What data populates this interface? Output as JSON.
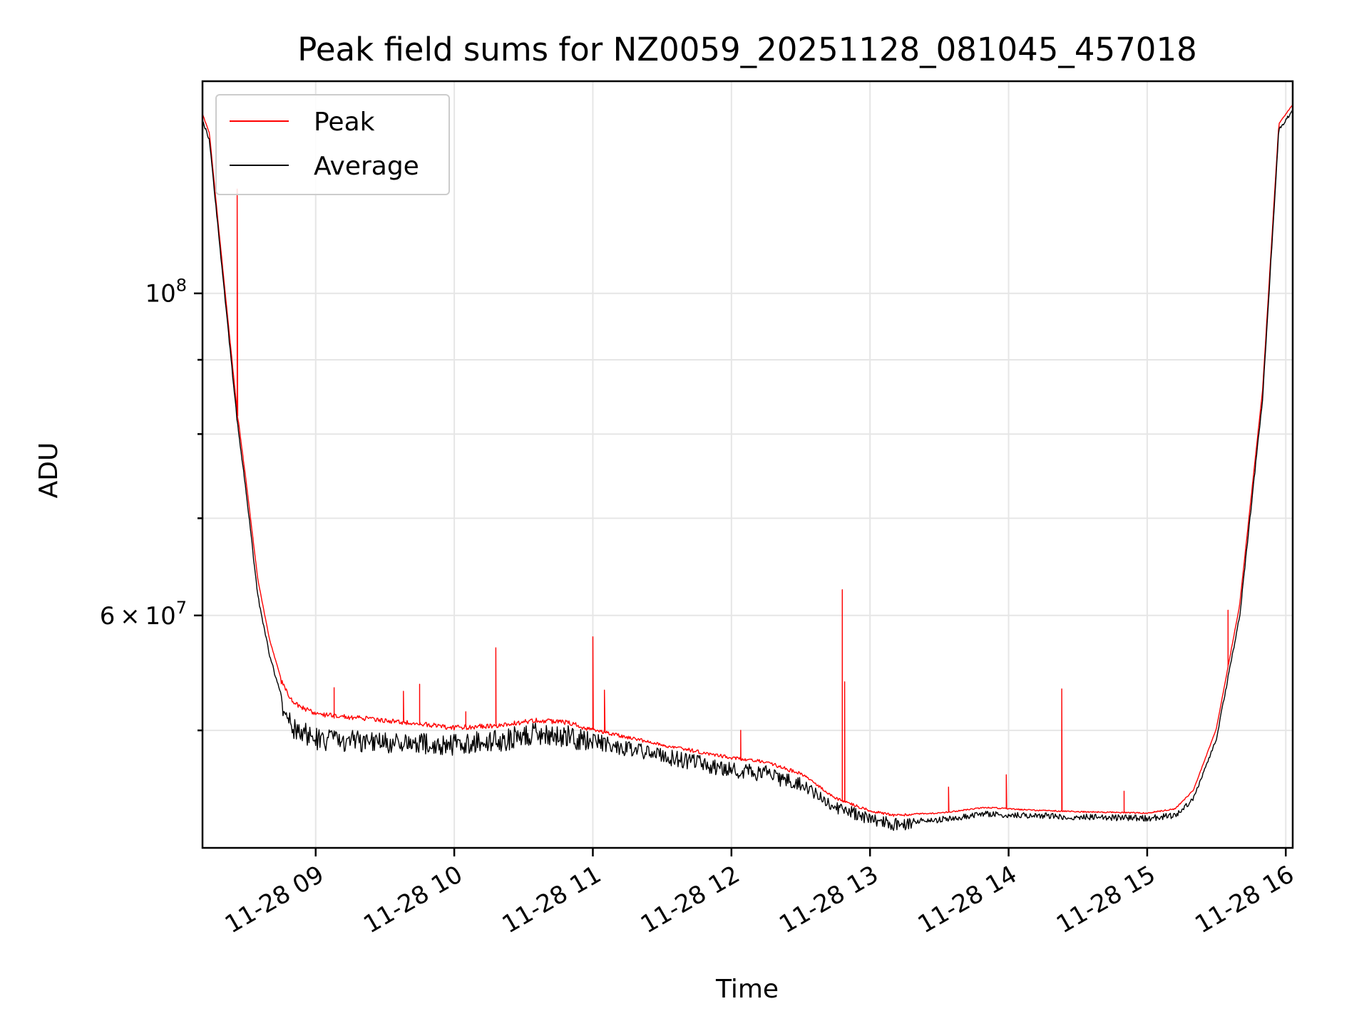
{
  "chart_data": {
    "type": "line",
    "title": "Peak field sums for NZ0059_20251128_081045_457018",
    "xlabel": "Time",
    "ylabel": "ADU",
    "yscale": "log",
    "xlim": [
      "2025-11-28 08:11",
      "2025-11-28 16:03"
    ],
    "ylim": [
      41500000,
      140000000
    ],
    "x_ticks": [
      {
        "value": "2025-11-28 09:00",
        "label": "11-28 09"
      },
      {
        "value": "2025-11-28 10:00",
        "label": "11-28 10"
      },
      {
        "value": "2025-11-28 11:00",
        "label": "11-28 11"
      },
      {
        "value": "2025-11-28 12:00",
        "label": "11-28 12"
      },
      {
        "value": "2025-11-28 13:00",
        "label": "11-28 13"
      },
      {
        "value": "2025-11-28 14:00",
        "label": "11-28 14"
      },
      {
        "value": "2025-11-28 15:00",
        "label": "11-28 15"
      },
      {
        "value": "2025-11-28 16:00",
        "label": "11-28 16"
      }
    ],
    "y_ticks": [
      {
        "value": 100000000,
        "base": "10",
        "exp": "8",
        "label": "10^8"
      },
      {
        "value": 60000000,
        "mant": "6",
        "base": "10",
        "exp": "7",
        "label": "6 × 10^7"
      }
    ],
    "y_minor_ticks": [
      50000000,
      70000000,
      80000000,
      90000000
    ],
    "grid": true,
    "legend": {
      "position": "top-left",
      "entries": [
        "Peak",
        "Average"
      ]
    },
    "series": [
      {
        "name": "Average",
        "color": "#000000",
        "points": [
          [
            "2025-11-28 08:11",
            132000000
          ],
          [
            "2025-11-28 08:14",
            128000000
          ],
          [
            "2025-11-28 08:18",
            110000000
          ],
          [
            "2025-11-28 08:22",
            95000000
          ],
          [
            "2025-11-28 08:26",
            82000000
          ],
          [
            "2025-11-28 08:30",
            73000000
          ],
          [
            "2025-11-28 08:35",
            62000000
          ],
          [
            "2025-11-28 08:40",
            56500000
          ],
          [
            "2025-11-28 08:45",
            53000000
          ],
          [
            "2025-11-28 08:50",
            51200000
          ],
          [
            "2025-11-28 09:00",
            50200000
          ],
          [
            "2025-11-28 09:30",
            50000000
          ],
          [
            "2025-11-28 10:00",
            49800000
          ],
          [
            "2025-11-28 10:20",
            50100000
          ],
          [
            "2025-11-28 10:35",
            50600000
          ],
          [
            "2025-11-28 10:50",
            50400000
          ],
          [
            "2025-11-28 11:00",
            49800000
          ],
          [
            "2025-11-28 11:30",
            48600000
          ],
          [
            "2025-11-28 12:00",
            47600000
          ],
          [
            "2025-11-28 12:15",
            47300000
          ],
          [
            "2025-11-28 12:30",
            46400000
          ],
          [
            "2025-11-28 12:45",
            44700000
          ],
          [
            "2025-11-28 13:00",
            43900000
          ],
          [
            "2025-11-28 13:10",
            43500000
          ],
          [
            "2025-11-28 13:30",
            43600000
          ],
          [
            "2025-11-28 13:50",
            44000000
          ],
          [
            "2025-11-28 14:10",
            43900000
          ],
          [
            "2025-11-28 14:30",
            43800000
          ],
          [
            "2025-11-28 15:00",
            43700000
          ],
          [
            "2025-11-28 15:12",
            43900000
          ],
          [
            "2025-11-28 15:20",
            45000000
          ],
          [
            "2025-11-28 15:30",
            49500000
          ],
          [
            "2025-11-28 15:40",
            60000000
          ],
          [
            "2025-11-28 15:50",
            85000000
          ],
          [
            "2025-11-28 15:57",
            130000000
          ],
          [
            "2025-11-28 16:03",
            134000000
          ]
        ]
      },
      {
        "name": "Peak",
        "color": "#ff0000",
        "points": [
          [
            "2025-11-28 08:11",
            133000000
          ],
          [
            "2025-11-28 08:14",
            129000000
          ],
          [
            "2025-11-28 08:18",
            111000000
          ],
          [
            "2025-11-28 08:22",
            96000000
          ],
          [
            "2025-11-28 08:26",
            83000000
          ],
          [
            "2025-11-28 08:30",
            74000000
          ],
          [
            "2025-11-28 08:35",
            63500000
          ],
          [
            "2025-11-28 08:40",
            57800000
          ],
          [
            "2025-11-28 08:45",
            54300000
          ],
          [
            "2025-11-28 08:50",
            52500000
          ],
          [
            "2025-11-28 09:00",
            51500000
          ],
          [
            "2025-11-28 09:30",
            51000000
          ],
          [
            "2025-11-28 10:00",
            50400000
          ],
          [
            "2025-11-28 10:20",
            50600000
          ],
          [
            "2025-11-28 10:35",
            51000000
          ],
          [
            "2025-11-28 10:50",
            50800000
          ],
          [
            "2025-11-28 11:00",
            50200000
          ],
          [
            "2025-11-28 11:30",
            49000000
          ],
          [
            "2025-11-28 12:00",
            48000000
          ],
          [
            "2025-11-28 12:15",
            47700000
          ],
          [
            "2025-11-28 12:30",
            46800000
          ],
          [
            "2025-11-28 12:45",
            45000000
          ],
          [
            "2025-11-28 13:00",
            44100000
          ],
          [
            "2025-11-28 13:10",
            43800000
          ],
          [
            "2025-11-28 13:30",
            43900000
          ],
          [
            "2025-11-28 13:50",
            44300000
          ],
          [
            "2025-11-28 14:10",
            44100000
          ],
          [
            "2025-11-28 14:30",
            44000000
          ],
          [
            "2025-11-28 15:00",
            43900000
          ],
          [
            "2025-11-28 15:12",
            44200000
          ],
          [
            "2025-11-28 15:20",
            45500000
          ],
          [
            "2025-11-28 15:30",
            50200000
          ],
          [
            "2025-11-28 15:40",
            61000000
          ],
          [
            "2025-11-28 15:50",
            86000000
          ],
          [
            "2025-11-28 15:57",
            131000000
          ],
          [
            "2025-11-28 16:03",
            135000000
          ]
        ],
        "spikes": [
          [
            "2025-11-28 08:26",
            118000000
          ],
          [
            "2025-11-28 09:08",
            53500000
          ],
          [
            "2025-11-28 09:38",
            53200000
          ],
          [
            "2025-11-28 09:45",
            53800000
          ],
          [
            "2025-11-28 10:05",
            51500000
          ],
          [
            "2025-11-28 10:18",
            57000000
          ],
          [
            "2025-11-28 11:00",
            58000000
          ],
          [
            "2025-11-28 11:05",
            53300000
          ],
          [
            "2025-11-28 12:04",
            50000000
          ],
          [
            "2025-11-28 12:48",
            62500000
          ],
          [
            "2025-11-28 12:49",
            54000000
          ],
          [
            "2025-11-28 13:34",
            45700000
          ],
          [
            "2025-11-28 13:59",
            46600000
          ],
          [
            "2025-11-28 14:23",
            53400000
          ],
          [
            "2025-11-28 14:50",
            45400000
          ],
          [
            "2025-11-28 15:35",
            60500000
          ]
        ]
      }
    ]
  }
}
